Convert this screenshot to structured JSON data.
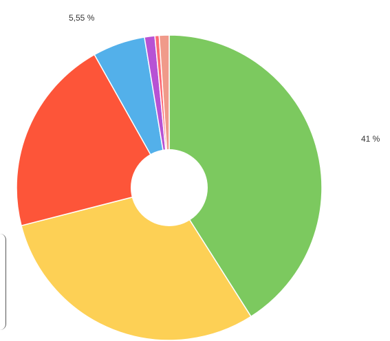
{
  "chart_data": {
    "type": "pie",
    "donut": true,
    "slices": [
      {
        "value": 41.0,
        "color": "#7cc95f",
        "label": "41 %"
      },
      {
        "value": 30.0,
        "color": "#fdd055",
        "label": ""
      },
      {
        "value": 20.85,
        "color": "#fd5539",
        "label": ""
      },
      {
        "value": 5.55,
        "color": "#53b0ea",
        "label": "5,55 %"
      },
      {
        "value": 1.1,
        "color": "#b752d4",
        "label": ""
      },
      {
        "value": 0.45,
        "color": "#fd6a74",
        "label": ""
      },
      {
        "value": 1.05,
        "color": "#f09a8a",
        "label": ""
      }
    ],
    "start": "top",
    "direction": "clockwise",
    "legend": "none"
  }
}
